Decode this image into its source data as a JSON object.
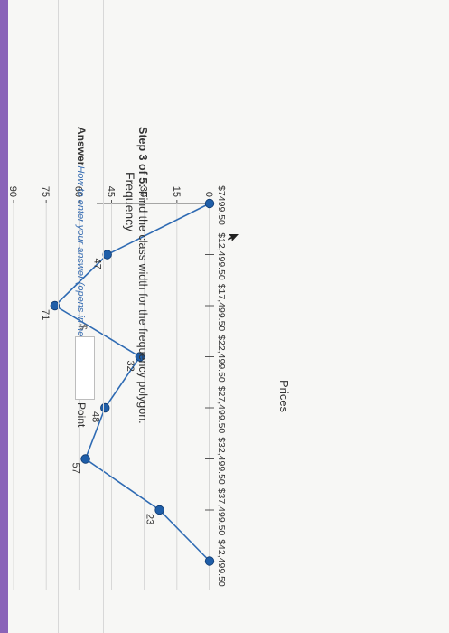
{
  "chart_data": {
    "type": "line",
    "ylabel": "Frequency",
    "xlabel": "Prices",
    "ylim": [
      0,
      90
    ],
    "yticks": [
      "0",
      "15",
      "30",
      "45",
      "60",
      "75",
      "90"
    ],
    "categories": [
      "$7499.50",
      "$12,499.50",
      "$17,499.50",
      "$22,499.50",
      "$27,499.50",
      "$32,499.50",
      "$37,499.50",
      "$42,499.50"
    ],
    "values": [
      0,
      47,
      71,
      32,
      48,
      57,
      23,
      0
    ],
    "data_labels": [
      "",
      "47",
      "71",
      "32",
      "48",
      "57",
      "23",
      ""
    ],
    "marker_color": "#1f5ea8",
    "line_color": "#2f6bb3"
  },
  "question": {
    "step_label": "Step 3 of 5:",
    "step_text": " Find the class width for the frequency polygon."
  },
  "answer": {
    "label": "Answer",
    "help_link": "How to enter your answer (opens in new window)",
    "points": "1 Point",
    "currency": "$",
    "value": ""
  },
  "icons": {
    "cursor": "mouse-pointer-icon"
  }
}
